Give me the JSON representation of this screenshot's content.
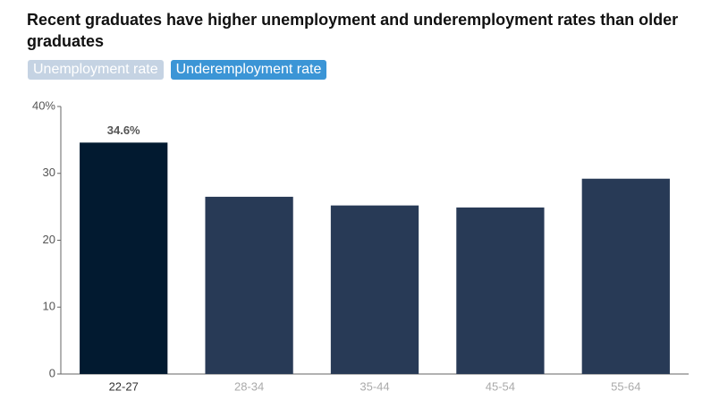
{
  "chart_data": {
    "type": "bar",
    "title": "Recent graduates have higher unemployment and underemployment rates than older graduates",
    "toggles": [
      {
        "label": "Unemployment rate",
        "active": false
      },
      {
        "label": "Underemployment rate",
        "active": true
      }
    ],
    "categories": [
      "22-27",
      "28-34",
      "35-44",
      "45-54",
      "55-64"
    ],
    "values": [
      34.6,
      26.5,
      25.2,
      24.9,
      29.2
    ],
    "value_labels": [
      "34.6%",
      null,
      null,
      null,
      null
    ],
    "color": "#283a56",
    "highlight_color": "#021a30",
    "highlight": 0,
    "ylim": [
      0,
      40
    ],
    "yticks": [
      0,
      10,
      20,
      30,
      {
        "value": 40,
        "label": "40%"
      }
    ],
    "grid": false
  }
}
